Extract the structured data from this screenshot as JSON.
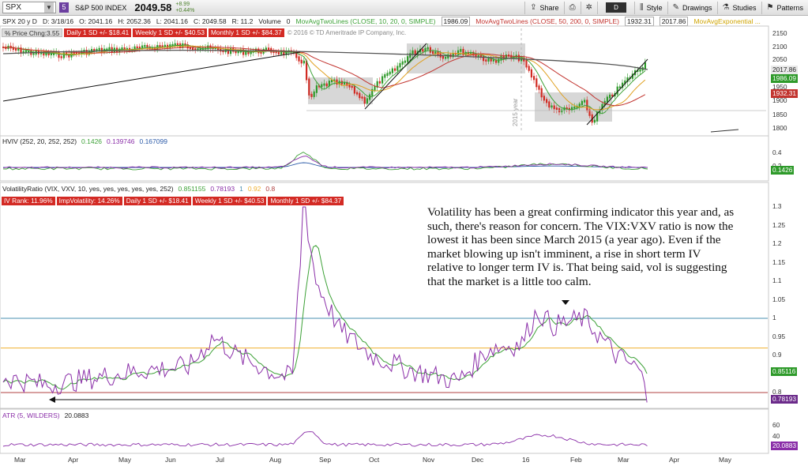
{
  "toolbar": {
    "symbol": "SPX",
    "link_number": "5",
    "index_name": "S&P 500 INDEX",
    "last_price": "2049.58",
    "change": "+8.99",
    "change_pct": "+0.44%",
    "buttons": [
      "Share",
      "",
      "Style",
      "Drawings",
      "Studies",
      "Patterns"
    ],
    "timeframe_letter": "D"
  },
  "infobar": {
    "title": "SPX 20 y D",
    "date": "D: 3/18/16",
    "open": "O: 2041.16",
    "high": "H: 2052.36",
    "low": "L: 2041.16",
    "close": "C: 2049.58",
    "range": "R: 11.2",
    "volume_label": "Volume",
    "volume_value": "0",
    "ma10_label": "MovAvgTwoLines (CLOSE, 10, 20, 0, SIMPLE)",
    "ma10_value": "1986.09",
    "ma50_label": "MovAvgTwoLines (CLOSE, 50, 200, 0, SIMPLE)",
    "ma50_value": "1932.31",
    "ma200_value": "2017.86",
    "maexp_label": "MovAvgExponential ..."
  },
  "price_badges": {
    "pct": "% Price Chng:3.55",
    "daily": "Daily 1 SD +/- $18.41",
    "weekly": "Weekly 1 SD +/- $40.53",
    "monthly": "Monthly 1 SD +/- $84.37",
    "copyright": "© 2016 © TD Ameritrade IP Company, Inc."
  },
  "hviv": {
    "label": "HVIV (252, 20, 252, 252)",
    "v1": "0.1426",
    "v2": "0.139746",
    "v3": "0.167099",
    "tag": "0.1426"
  },
  "volratio": {
    "label": "VolatilityRatio (VIX, VXV, 10, yes, yes, yes, yes, yes, 252)",
    "v1": "0.851155",
    "v2": "0.78193",
    "v3": "1",
    "v4": "0.92",
    "v5": "0.8",
    "tag_green": "0.85116",
    "tag_purple": "0.78193"
  },
  "iv_badges": {
    "ivrank": "IV Rank: 11.96%",
    "impvol": "ImpVolatility: 14.26%",
    "daily": "Daily 1 SD +/- $18.41",
    "weekly": "Weekly 1 SD +/- $40.53",
    "monthly": "Monthly 1 SD +/- $84.37"
  },
  "atr": {
    "label": "ATR (5, WILDERS)",
    "value": "20.0883",
    "tag": "20.0883"
  },
  "price_axis": [
    "2150",
    "2100",
    "2050",
    "2000",
    "1950",
    "1900",
    "1850",
    "1800"
  ],
  "price_tags": {
    "t1": "2017.86",
    "t2": "1986.09",
    "t3": "1932.31"
  },
  "hviv_axis": [
    "0.4",
    "0.2"
  ],
  "vr_axis": [
    "1.3",
    "1.25",
    "1.2",
    "1.15",
    "1.1",
    "1.05",
    "1",
    "0.95",
    "0.9",
    "0.85",
    "0.8"
  ],
  "atr_axis": [
    "60",
    "40"
  ],
  "x_axis": [
    "Mar",
    "Apr",
    "May",
    "Jun",
    "Jul",
    "Aug",
    "Sep",
    "Oct",
    "Nov",
    "Dec",
    "16",
    "Feb",
    "Mar",
    "Apr",
    "May"
  ],
  "year_marker": "2015 year",
  "annotation": "Volatility has been a great confirming indicator this year and, as such, there's reason for concern.  The VIX:VXV ratio is now the lowest it has been since March 2015 (a year ago).  Even if the market blowing up isn't imminent, a rise in short term IV relative to longer term IV is.  That being said, vol is suggesting that the market is a little too calm.",
  "colors": {
    "candle_up": "#2e9a2a",
    "candle_down": "#d12a22",
    "ma_green": "#3da137",
    "ma_red": "#c2342f",
    "ma_dark": "#444444",
    "vr_purple": "#8a2ea8",
    "hline_blue": "#4a8fb0",
    "hline_orange": "#f0b030",
    "hline_red": "#b04040"
  }
}
